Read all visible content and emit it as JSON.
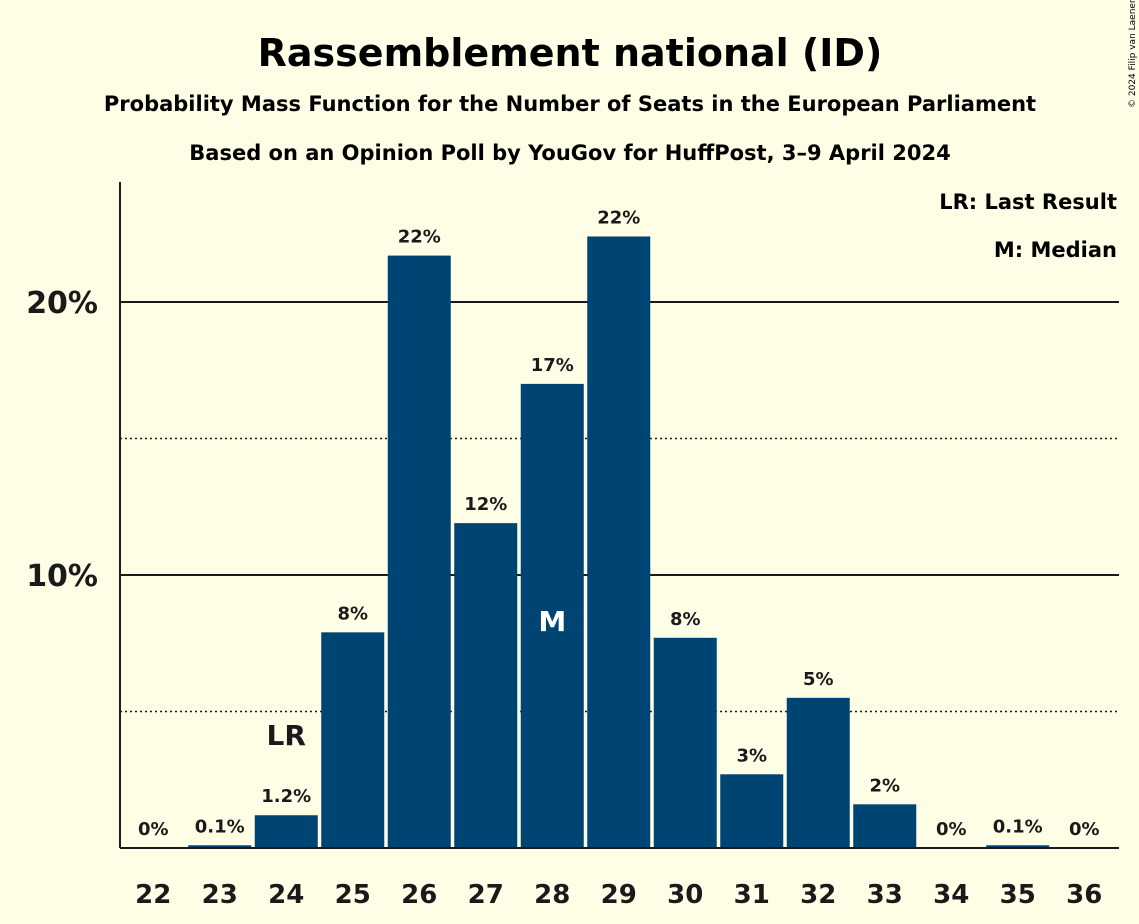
{
  "title": "Rassemblement national (ID)",
  "subtitle1": "Probability Mass Function for the Number of Seats in the European Parliament",
  "subtitle2": "Based on an Opinion Poll by YouGov for HuffPost, 3–9 April 2024",
  "copyright": "© 2024 Filip van Laenen",
  "legend": {
    "last_result": "LR: Last Result",
    "median": "M: Median"
  },
  "colors": {
    "background": "#fefde6",
    "bar": "#004474",
    "text": "#1a1a1a"
  },
  "chart_data": {
    "type": "bar",
    "title": "Rassemblement national (ID)",
    "xlabel": "",
    "ylabel": "",
    "categories": [
      "22",
      "23",
      "24",
      "25",
      "26",
      "27",
      "28",
      "29",
      "30",
      "31",
      "32",
      "33",
      "34",
      "35",
      "36"
    ],
    "values": [
      0,
      0.1,
      1.2,
      7.9,
      21.7,
      11.9,
      17.0,
      22.4,
      7.7,
      2.7,
      5.5,
      1.6,
      0,
      0.1,
      0
    ],
    "data_labels": [
      "0%",
      "0.1%",
      "1.2%",
      "8%",
      "22%",
      "12%",
      "17%",
      "22%",
      "8%",
      "3%",
      "5%",
      "2%",
      "0%",
      "0.1%",
      "0%"
    ],
    "ylim": [
      0,
      24.5
    ],
    "y_ticks": [
      {
        "value": 10,
        "label": "10%"
      },
      {
        "value": 20,
        "label": "20%"
      }
    ],
    "minor_gridlines": [
      5,
      15
    ],
    "grid": true,
    "last_result": {
      "category": "24",
      "label": "LR"
    },
    "median": {
      "category": "28",
      "label": "M"
    },
    "legend_placement": "top-right"
  }
}
